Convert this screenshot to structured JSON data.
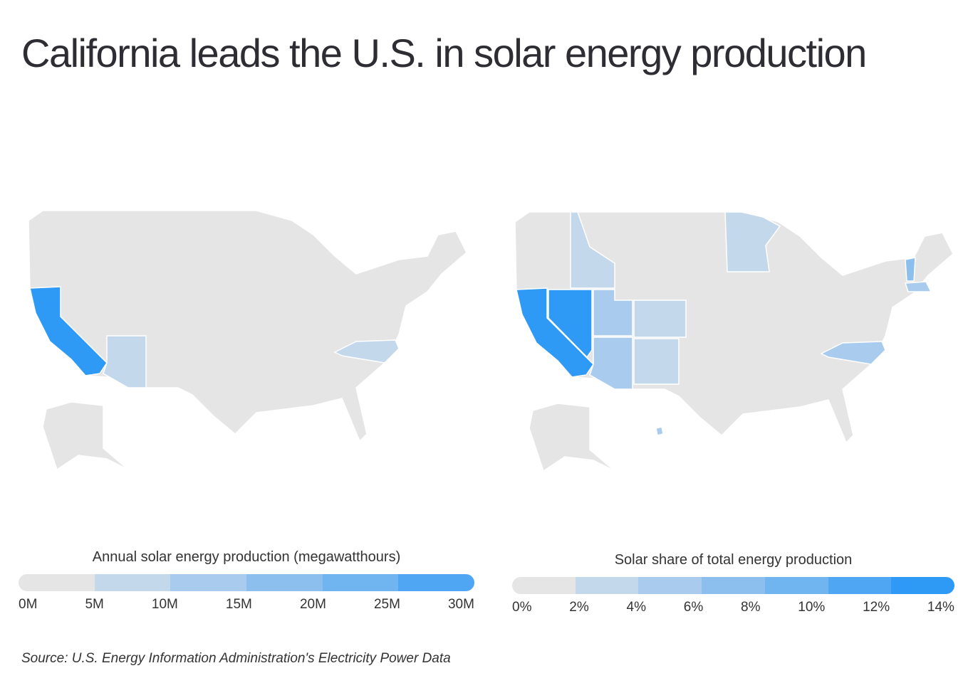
{
  "title": "California leads the U.S. in solar energy production",
  "source": "Source:  U.S. Energy Information Administration's Electricity Power Data",
  "colors": {
    "base": "#e5e5e5",
    "scale": [
      "#e5e5e5",
      "#c4d8ec",
      "#a8cbee",
      "#8cbfee",
      "#70b4f0",
      "#4fa6f3",
      "#2e9af6"
    ]
  },
  "maps": [
    {
      "legend_title": "Annual solar energy production (megawatthours)",
      "ticks": [
        "0M",
        "5M",
        "10M",
        "15M",
        "20M",
        "25M",
        "30M"
      ],
      "highlighted": {
        "California": 6,
        "Arizona": 1,
        "North Carolina": 1
      }
    },
    {
      "legend_title": "Solar share of total energy production",
      "ticks": [
        "0%",
        "2%",
        "4%",
        "6%",
        "8%",
        "10%",
        "12%",
        "14%"
      ],
      "highlighted": {
        "California": 6,
        "Nevada": 6,
        "Utah": 2,
        "Arizona": 2,
        "Colorado": 1,
        "New Mexico": 1,
        "Idaho": 1,
        "Minnesota": 1,
        "North Carolina": 2,
        "Vermont": 3,
        "Massachusetts": 2,
        "Hawaii": 2
      }
    }
  ]
}
